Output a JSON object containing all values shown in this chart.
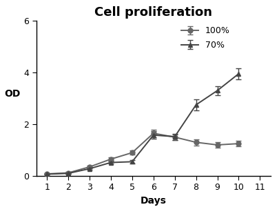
{
  "title": "Cell proliferation",
  "xlabel": "Days",
  "ylabel": "OD",
  "xlim": [
    0.5,
    11.5
  ],
  "ylim": [
    0,
    6
  ],
  "yticks": [
    0,
    2,
    4,
    6
  ],
  "xticks": [
    1,
    2,
    3,
    4,
    5,
    6,
    7,
    8,
    9,
    10,
    11
  ],
  "series_100": {
    "label": "100%",
    "x": [
      1,
      2,
      3,
      4,
      5,
      6,
      7,
      8,
      9,
      10
    ],
    "y": [
      0.08,
      0.12,
      0.35,
      0.65,
      0.9,
      1.65,
      1.5,
      1.3,
      1.2,
      1.25
    ],
    "yerr": [
      0.02,
      0.03,
      0.05,
      0.07,
      0.08,
      0.15,
      0.1,
      0.12,
      0.1,
      0.1
    ],
    "color": "#666666",
    "marker": "o",
    "markersize": 5
  },
  "series_70": {
    "label": "70%",
    "x": [
      1,
      2,
      3,
      4,
      5,
      6,
      7,
      8,
      9,
      10
    ],
    "y": [
      0.07,
      0.1,
      0.28,
      0.52,
      0.55,
      1.58,
      1.52,
      2.75,
      3.3,
      3.95
    ],
    "yerr": [
      0.02,
      0.02,
      0.04,
      0.05,
      0.06,
      0.15,
      0.12,
      0.22,
      0.18,
      0.22
    ],
    "color": "#444444",
    "marker": "^",
    "markersize": 5
  },
  "background_color": "#ffffff",
  "title_fontsize": 13,
  "axis_label_fontsize": 10,
  "tick_fontsize": 9,
  "legend_fontsize": 9
}
